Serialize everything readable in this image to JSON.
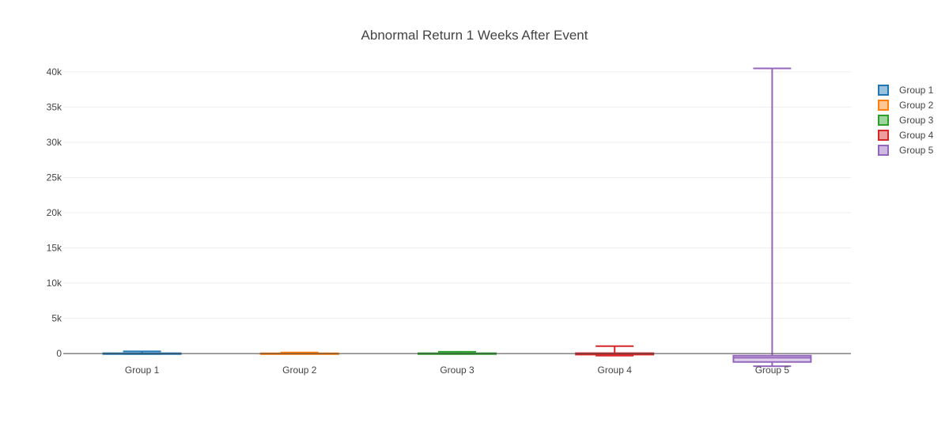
{
  "chart_data": {
    "type": "box",
    "title": "Abnormal Return 1 Weeks After Event",
    "xlabel": "",
    "ylabel": "",
    "ylim": [
      -1900,
      41000
    ],
    "y_ticks": [
      0,
      5000,
      10000,
      15000,
      20000,
      25000,
      30000,
      35000,
      40000
    ],
    "y_tick_labels": [
      "0",
      "5k",
      "10k",
      "15k",
      "20k",
      "25k",
      "30k",
      "35k",
      "40k"
    ],
    "categories": [
      "Group 1",
      "Group 2",
      "Group 3",
      "Group 4",
      "Group 5"
    ],
    "grid": true,
    "legend_position": "top-right",
    "series": [
      {
        "name": "Group 1",
        "color": "#1f77b4",
        "fill": "#8fbbd9",
        "min": -60,
        "q1": -40,
        "median": 0,
        "q3": 40,
        "max": 300
      },
      {
        "name": "Group 2",
        "color": "#ff7f0e",
        "fill": "#ffbf86",
        "min": -50,
        "q1": -30,
        "median": 0,
        "q3": 30,
        "max": 150
      },
      {
        "name": "Group 3",
        "color": "#2ca02c",
        "fill": "#95cf95",
        "min": -60,
        "q1": -40,
        "median": 0,
        "q3": 40,
        "max": 250
      },
      {
        "name": "Group 4",
        "color": "#d62728",
        "fill": "#ea9293",
        "min": -300,
        "q1": -150,
        "median": -50,
        "q3": 50,
        "max": 1050
      },
      {
        "name": "Group 5",
        "color": "#9467bd",
        "fill": "#c9b3de",
        "min": -1800,
        "q1": -1200,
        "median": -600,
        "q3": -300,
        "max": 40500
      }
    ]
  }
}
